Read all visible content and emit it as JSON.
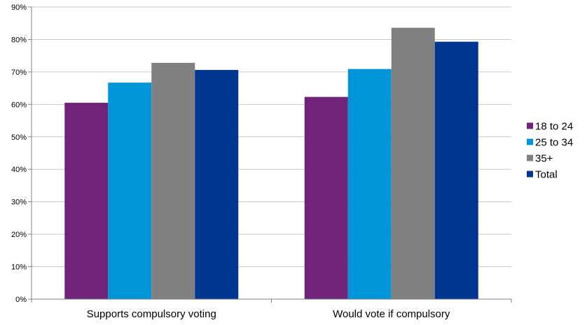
{
  "chart_data": {
    "type": "bar",
    "categories": [
      "Supports compulsory voting",
      "Would vote if compulsory"
    ],
    "series": [
      {
        "name": "18 to 24",
        "color": "#71237a",
        "values": [
          60.5,
          62.3
        ]
      },
      {
        "name": "25 to 34",
        "color": "#0095d9",
        "values": [
          66.7,
          70.9
        ]
      },
      {
        "name": "35+",
        "color": "#808080",
        "values": [
          72.8,
          83.6
        ]
      },
      {
        "name": "Total",
        "color": "#003591",
        "values": [
          70.6,
          79.3
        ]
      }
    ],
    "y_ticks": [
      "0%",
      "10%",
      "20%",
      "30%",
      "40%",
      "50%",
      "60%",
      "70%",
      "80%",
      "90%"
    ],
    "ylim": [
      0,
      90
    ],
    "y_unit": "%",
    "grid": true,
    "legend_position": "right"
  }
}
